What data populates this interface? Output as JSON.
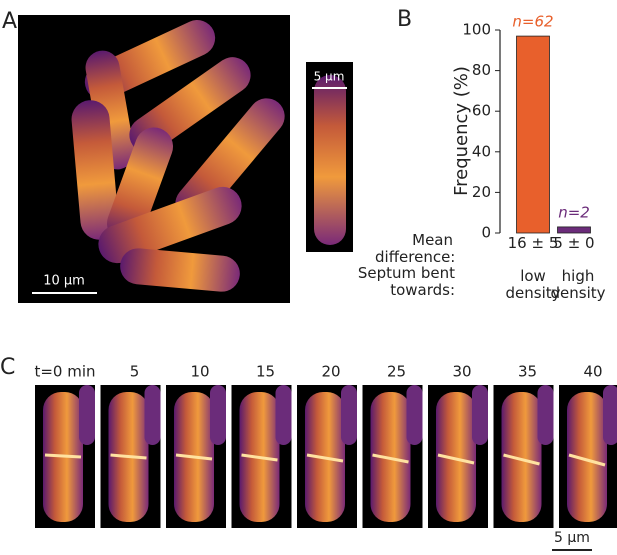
{
  "panels": {
    "a": "A",
    "b": "B",
    "c": "C"
  },
  "panel_a": {
    "scale_bar": "10 µm",
    "inset_scale_bar": "5 µm"
  },
  "chart_data": {
    "type": "bar",
    "categories": [
      "low density",
      "high density"
    ],
    "values": [
      97,
      3
    ],
    "colors": [
      "#e8602c",
      "#6b2c7a"
    ],
    "annotations": [
      "n=62",
      "n=2"
    ],
    "ylabel": "Frequency (%)",
    "ylim": [
      0,
      100
    ],
    "yticks": [
      0,
      20,
      40,
      60,
      80,
      100
    ],
    "row_labels": {
      "mean": "Mean difference:",
      "bent": "Septum bent towards:"
    },
    "mean_difference": [
      "16 ± 5",
      "5 ± 0"
    ]
  },
  "panel_c": {
    "times": [
      "t=0 min",
      "5",
      "10",
      "15",
      "20",
      "25",
      "30",
      "35",
      "40"
    ],
    "scale_bar": "5 µm"
  }
}
